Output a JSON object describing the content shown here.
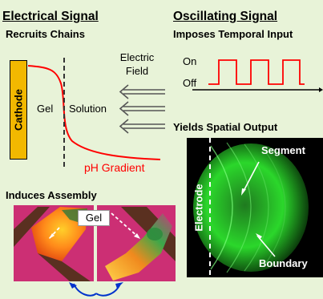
{
  "left": {
    "heading": "Electrical Signal",
    "sub_recruit": "Recruits Chains",
    "cathode": "Cathode",
    "gel": "Gel",
    "solution": "Solution",
    "electric": "Electric",
    "field": "Field",
    "ph": "pH Gradient",
    "sub_assembly": "Induces Assembly",
    "gel_tag": "Gel"
  },
  "right": {
    "heading": "Oscillating Signal",
    "sub_temporal": "Imposes Temporal Input",
    "on": "On",
    "off": "Off",
    "sub_spatial": "Yields Spatial Output",
    "segment": "Segment",
    "boundary": "Boundary",
    "electrode": "Electrode"
  },
  "colors": {
    "background": "#e8f3d8",
    "cathode": "#f2b800",
    "curve": "#ff0000",
    "pulse": "#ff0000",
    "arrow_blue": "#0033cc",
    "photo_bg": "#cc2f74",
    "green_glow": "#2bd72b"
  }
}
